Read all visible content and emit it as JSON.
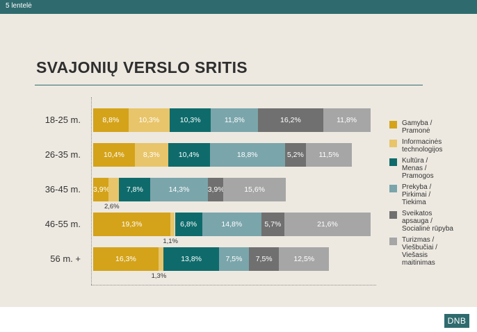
{
  "header": {
    "slide_label": "5 lentelė"
  },
  "title": "SVAJONIŲ VERSLO SRITIS",
  "brand": {
    "logo_text": "DNB",
    "accent_color": "#2f6b6e"
  },
  "chart_data": {
    "type": "bar",
    "orientation": "horizontal",
    "stacked": true,
    "unit": "%",
    "decimal_separator": ",",
    "categories": [
      "18-25 m.",
      "26-35 m.",
      "36-45 m.",
      "46-55 m.",
      "56 m. +"
    ],
    "series": [
      {
        "name": "Gamyba / Pramonė",
        "color": "#d4a31a",
        "text_color": "#ffffff",
        "values": [
          8.8,
          10.4,
          3.9,
          19.3,
          16.3
        ]
      },
      {
        "name": "Informacinės technologijos",
        "color": "#e8c56a",
        "text_color": "#ffffff",
        "values": [
          10.3,
          8.3,
          2.6,
          1.1,
          1.3
        ]
      },
      {
        "name": "Kultūra / Menas / Pramogos",
        "color": "#0f6b6b",
        "text_color": "#ffffff",
        "values": [
          10.3,
          10.4,
          7.8,
          6.8,
          13.8
        ]
      },
      {
        "name": "Prekyba / Pirkimai / Tiekima",
        "color": "#7aa5ab",
        "text_color": "#ffffff",
        "values": [
          11.8,
          18.8,
          14.3,
          14.8,
          7.5
        ]
      },
      {
        "name": "Sveikatos apsauga / Socialinė rūpyba",
        "color": "#707070",
        "text_color": "#ffffff",
        "values": [
          16.2,
          5.2,
          3.9,
          5.7,
          7.5
        ]
      },
      {
        "name": "Turizmas / Viešbučiai / Viešasis maitinimas",
        "color": "#a6a6a6",
        "text_color": "#ffffff",
        "values": [
          11.8,
          11.5,
          15.6,
          21.6,
          12.5
        ]
      }
    ],
    "outside_labels": [
      {
        "category": "36-45 m.",
        "series": "Informacinės technologijos",
        "value": 2.6
      },
      {
        "category": "46-55 m.",
        "series": "Informacinės technologijos",
        "value": 1.1
      },
      {
        "category": "56 m. +",
        "series": "Informacinės technologijos",
        "value": 1.3
      }
    ],
    "legend_labels": [
      "Gamyba /\nPramonė",
      "Informacinės\ntechnologijos",
      "Kultūra /\nMenas /\nPramogos",
      "Prekyba /\nPirkimai /\nTiekima",
      "Sveikatos\napsauga /\nSocialinė rūpyba",
      "Turizmas /\nViešbučiai /\nViešasis\nmaitinimas"
    ],
    "legend_placement": "right",
    "grid": false
  }
}
